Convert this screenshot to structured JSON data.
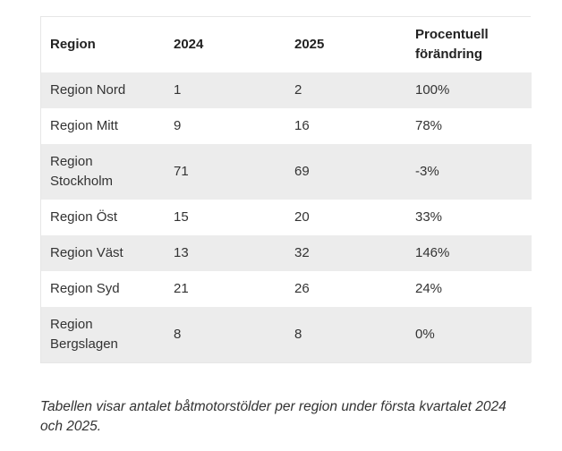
{
  "table": {
    "headers": [
      "Region",
      "2024",
      "2025",
      "Procentuell förändring"
    ],
    "rows": [
      [
        "Region Nord",
        "1",
        "2",
        "100%"
      ],
      [
        "Region Mitt",
        "9",
        "16",
        "78%"
      ],
      [
        "Region Stockholm",
        "71",
        "69",
        "-3%"
      ],
      [
        "Region Öst",
        "15",
        "20",
        "33%"
      ],
      [
        "Region Väst",
        "13",
        "32",
        "146%"
      ],
      [
        "Region Syd",
        "21",
        "26",
        "24%"
      ],
      [
        "Region Bergslagen",
        "8",
        "8",
        "0%"
      ]
    ]
  },
  "caption": "Tabellen visar antalet båtmotorstölder per region under första kvartalet 2024 och 2025."
}
